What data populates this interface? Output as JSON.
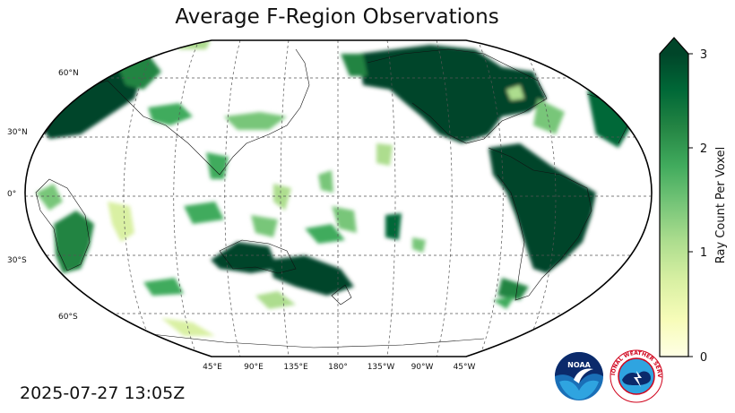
{
  "title": "Average F-Region Observations",
  "timestamp": "2025-07-27 13:05Z",
  "map": {
    "projection": "robinson",
    "central_longitude": 180,
    "lat_labels": [
      "60°N",
      "30°N",
      "0°",
      "30°S",
      "60°S"
    ],
    "lon_labels": [
      "45°E",
      "90°E",
      "135°E",
      "180°",
      "135°W",
      "90°W",
      "45°W"
    ]
  },
  "colorbar": {
    "label": "Ray Count Per Voxel",
    "ticks": [
      "0",
      "1",
      "2",
      "3"
    ],
    "range": [
      0,
      3
    ],
    "extend": "max",
    "colormap": "YlGn",
    "colors": [
      "#ffffe5",
      "#f7fcb9",
      "#d9f0a3",
      "#addd8e",
      "#78c679",
      "#41ab5d",
      "#238443",
      "#006837",
      "#004529"
    ]
  },
  "logos": {
    "noaa_text": "NOAA",
    "nws_text": "NATIONAL WEATHER SERVICE"
  }
}
